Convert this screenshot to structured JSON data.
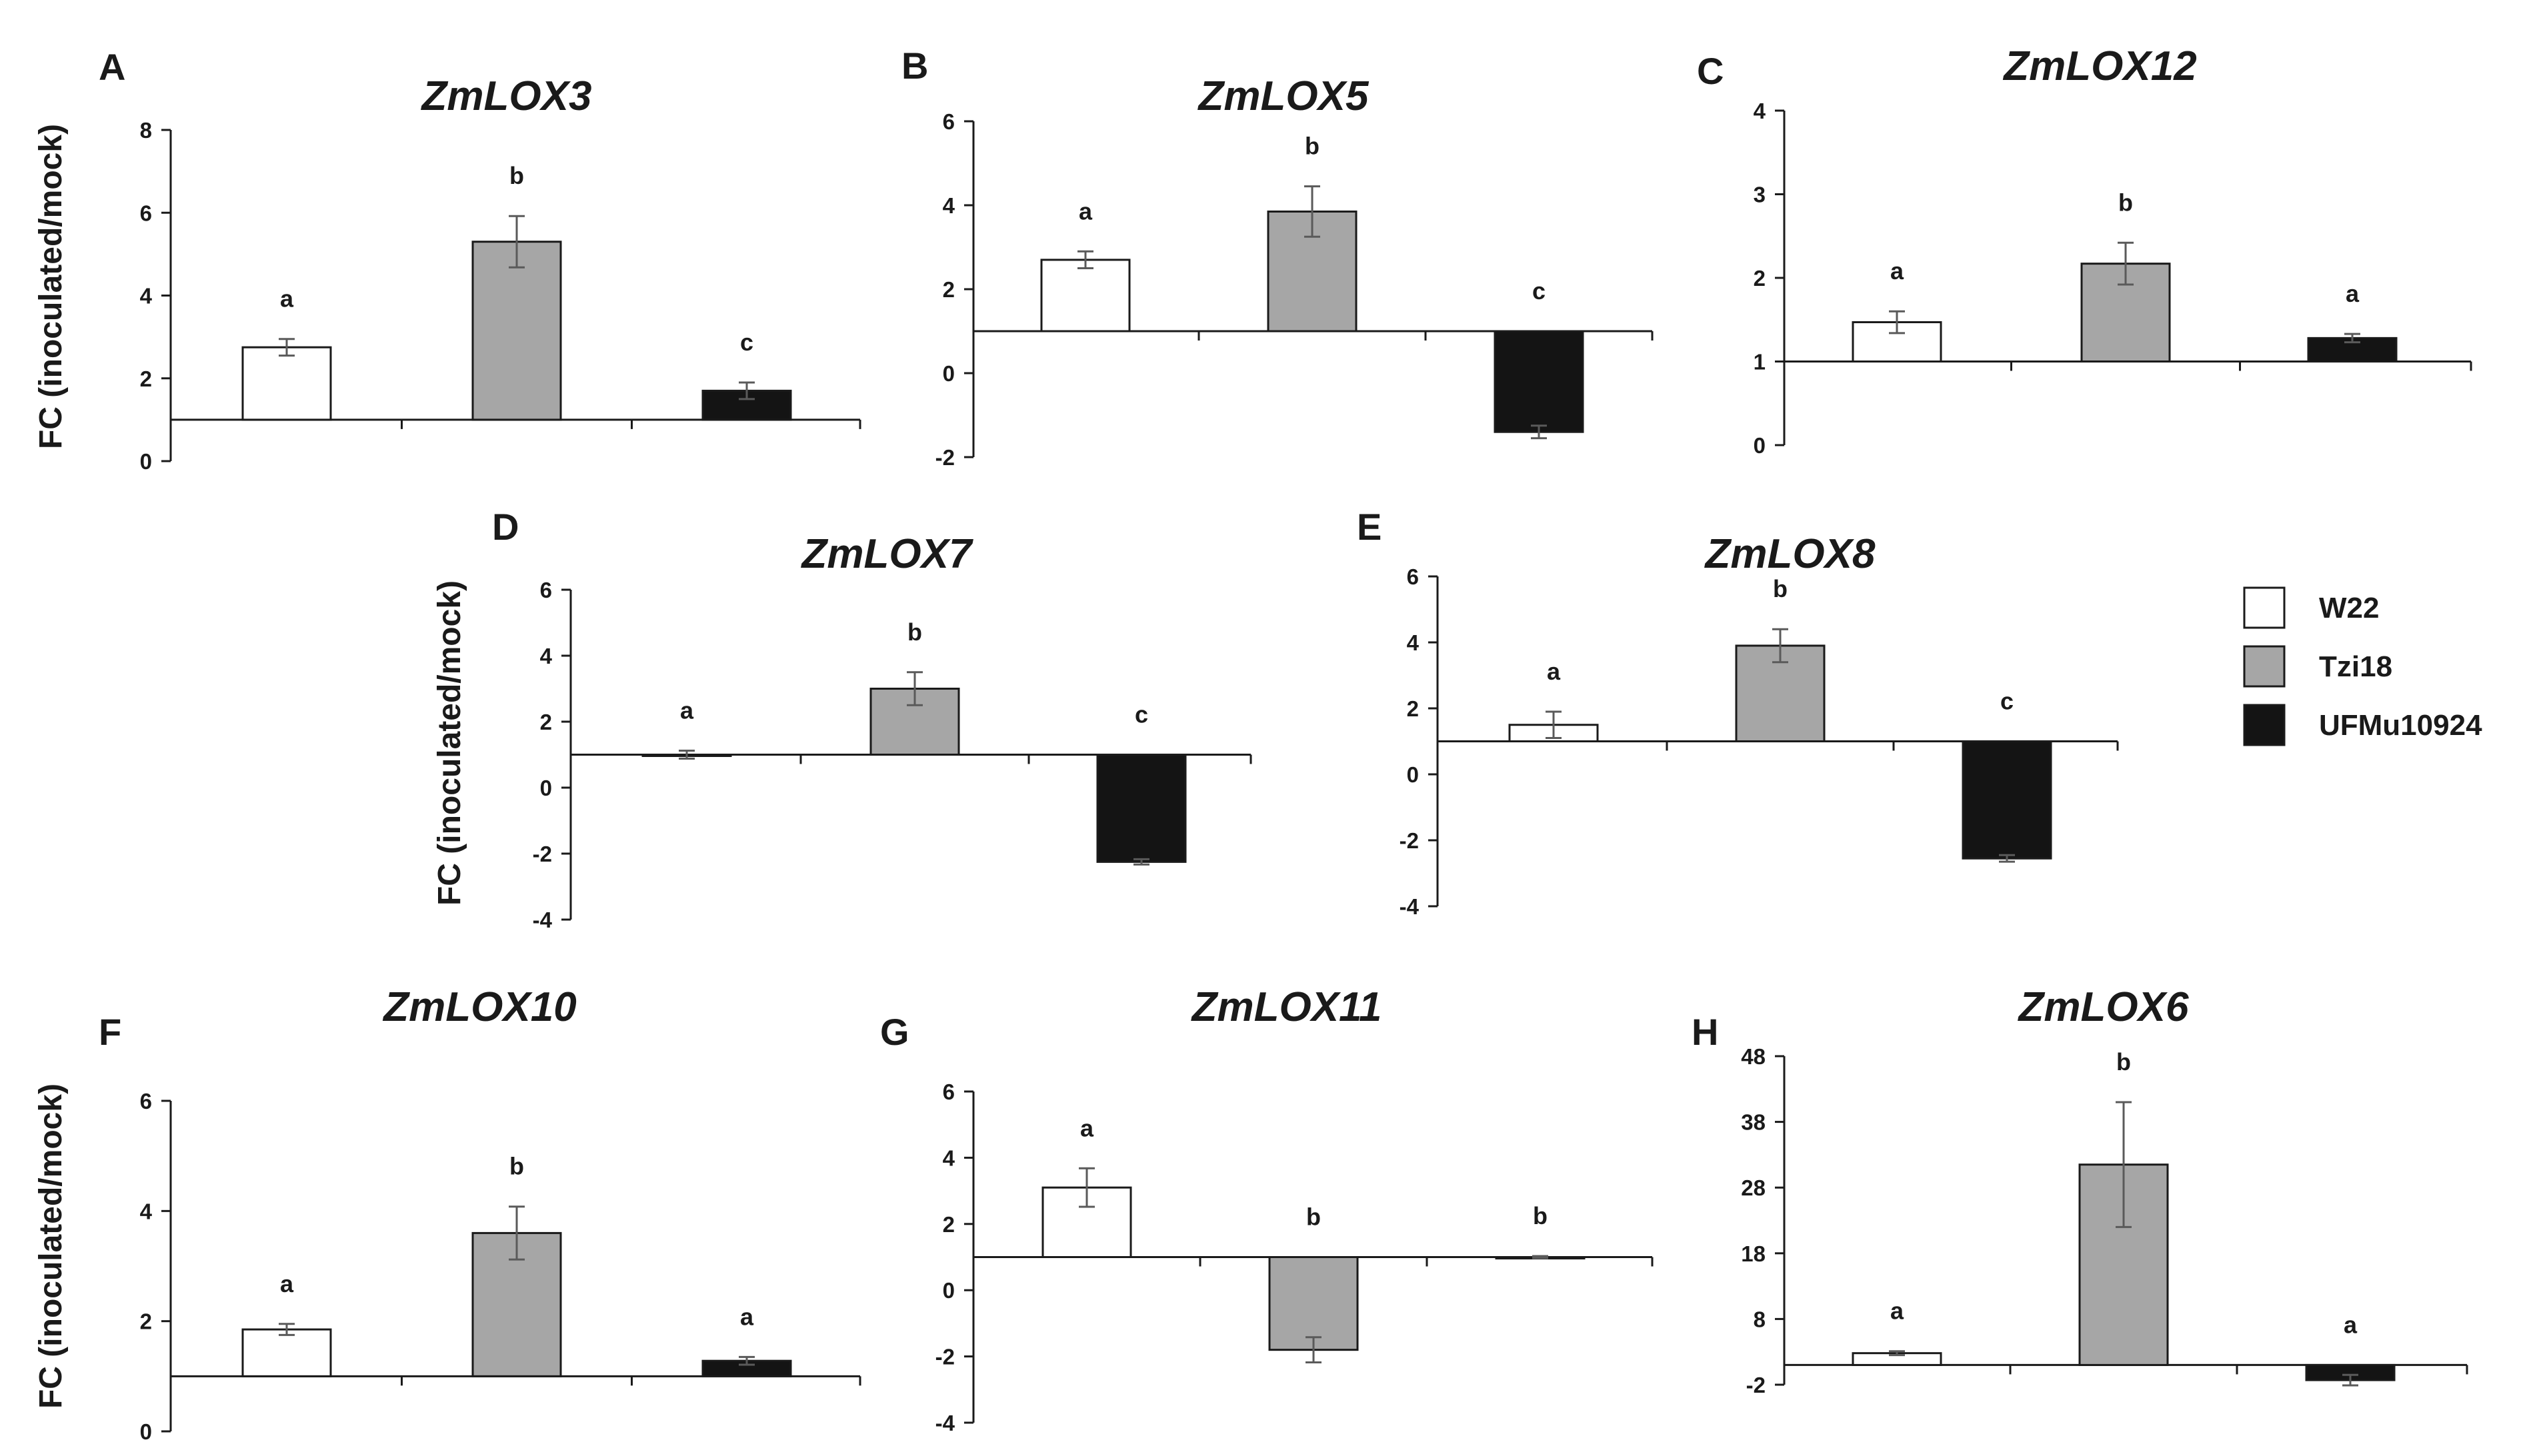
{
  "legend": {
    "entries": [
      {
        "name": "W22",
        "color": "#ffffff"
      },
      {
        "name": "Tzi18",
        "color": "#a6a6a6"
      },
      {
        "name": "UFMu10924",
        "color": "#141414"
      }
    ]
  },
  "ylabel": "FC (inoculated/mock)",
  "chart_data": [
    {
      "type": "bar",
      "panel": "A",
      "title": "ZmLOX3",
      "ylim": [
        0,
        8
      ],
      "ticks": [
        "0",
        "2",
        "4",
        "6",
        "8"
      ],
      "baseline": 1,
      "categories": [
        "W22",
        "Tzi18",
        "UFMu10924"
      ],
      "values": [
        2.75,
        5.3,
        1.7
      ],
      "errors": [
        0.2,
        0.62,
        0.2
      ],
      "letters": [
        "a",
        "b",
        "c"
      ]
    },
    {
      "type": "bar",
      "panel": "B",
      "title": "ZmLOX5",
      "ylim": [
        -2,
        6
      ],
      "ticks": [
        "-2",
        "0",
        "2",
        "4",
        "6"
      ],
      "baseline": 1,
      "categories": [
        "W22",
        "Tzi18",
        "UFMu10924"
      ],
      "values": [
        2.7,
        3.85,
        -1.4
      ],
      "errors": [
        0.2,
        0.6,
        0.15
      ],
      "letters": [
        "a",
        "b",
        "c"
      ]
    },
    {
      "type": "bar",
      "panel": "C",
      "title": "ZmLOX12",
      "ylim": [
        0,
        4
      ],
      "ticks": [
        "0",
        "1",
        "2",
        "3",
        "4"
      ],
      "baseline": 1,
      "categories": [
        "W22",
        "Tzi18",
        "UFMu10924"
      ],
      "values": [
        1.47,
        2.17,
        1.28
      ],
      "errors": [
        0.13,
        0.25,
        0.05
      ],
      "letters": [
        "a",
        "b",
        "a"
      ]
    },
    {
      "type": "bar",
      "panel": "D",
      "title": "ZmLOX7",
      "ylim": [
        -4,
        6
      ],
      "ticks": [
        "-4",
        "-2",
        "0",
        "2",
        "4",
        "6"
      ],
      "baseline": 1,
      "categories": [
        "W22",
        "Tzi18",
        "UFMu10924"
      ],
      "values": [
        1.0,
        3.0,
        -2.25
      ],
      "errors": [
        0.12,
        0.5,
        0.08
      ],
      "letters": [
        "a",
        "b",
        "c"
      ]
    },
    {
      "type": "bar",
      "panel": "E",
      "title": "ZmLOX8",
      "ylim": [
        -4,
        6
      ],
      "ticks": [
        "-4",
        "-2",
        "0",
        "2",
        "4",
        "6"
      ],
      "baseline": 1,
      "categories": [
        "W22",
        "Tzi18",
        "UFMu10924"
      ],
      "values": [
        1.5,
        3.9,
        -2.55
      ],
      "errors": [
        0.4,
        0.5,
        0.1
      ],
      "letters": [
        "a",
        "b",
        "c"
      ]
    },
    {
      "type": "bar",
      "panel": "F",
      "title": "ZmLOX10",
      "ylim": [
        0,
        6
      ],
      "ticks": [
        "0",
        "2",
        "4",
        "6"
      ],
      "baseline": 1,
      "categories": [
        "W22",
        "Tzi18",
        "UFMu10924"
      ],
      "values": [
        1.85,
        3.6,
        1.28
      ],
      "errors": [
        0.1,
        0.48,
        0.07
      ],
      "letters": [
        "a",
        "b",
        "a"
      ]
    },
    {
      "type": "bar",
      "panel": "G",
      "title": "ZmLOX11",
      "ylim": [
        -4,
        6
      ],
      "ticks": [
        "-4",
        "-2",
        "0",
        "2",
        "4",
        "6"
      ],
      "baseline": 1,
      "categories": [
        "W22",
        "Tzi18",
        "UFMu10924"
      ],
      "values": [
        3.1,
        -1.8,
        1.0
      ],
      "errors": [
        0.58,
        0.38,
        0.03
      ],
      "letters": [
        "a",
        "b",
        "b"
      ]
    },
    {
      "type": "bar",
      "panel": "H",
      "title": "ZmLOX6",
      "ylim": [
        -2,
        48
      ],
      "ticks": [
        "-2",
        "8",
        "18",
        "28",
        "38",
        "48"
      ],
      "baseline": 1,
      "categories": [
        "W22",
        "Tzi18",
        "UFMu10924"
      ],
      "values": [
        2.8,
        31.5,
        -1.3
      ],
      "errors": [
        0.3,
        9.5,
        0.8
      ],
      "letters": [
        "a",
        "b",
        "a"
      ]
    }
  ]
}
